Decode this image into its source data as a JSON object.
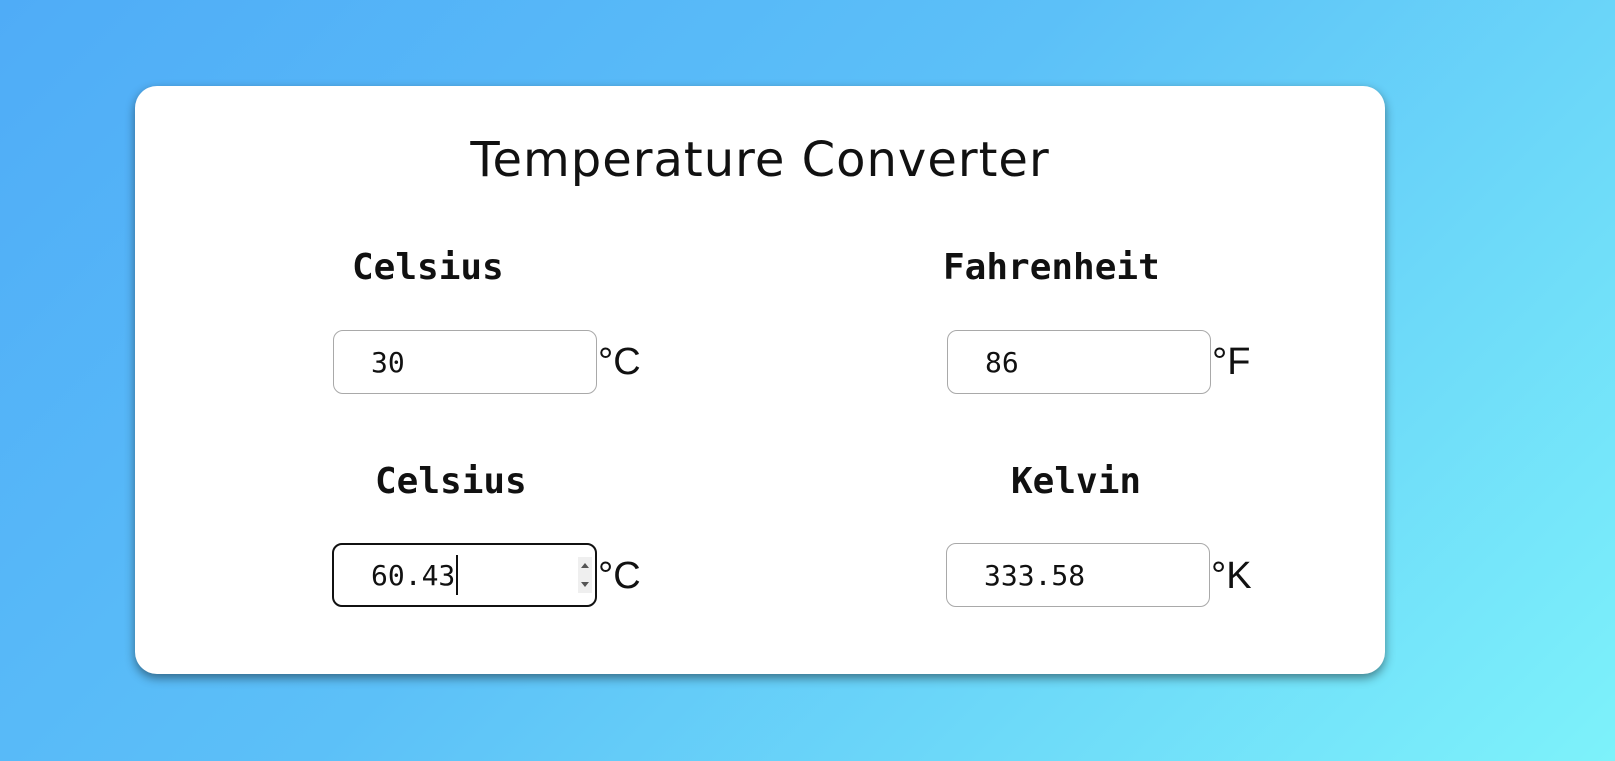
{
  "app": {
    "title": "Temperature Converter"
  },
  "converters": [
    {
      "from": {
        "label": "Celsius",
        "value": "30",
        "unit": "°C"
      },
      "to": {
        "label": "Fahrenheit",
        "value": "86",
        "unit": "°F"
      }
    },
    {
      "from": {
        "label": "Celsius",
        "value": "60.43",
        "unit": "°C"
      },
      "to": {
        "label": "Kelvin",
        "value": "333.58",
        "unit": "°K"
      }
    }
  ],
  "colors": {
    "background_start": "#4facf7",
    "background_end": "#7df2fa",
    "card": "#ffffff",
    "text": "#111111"
  }
}
